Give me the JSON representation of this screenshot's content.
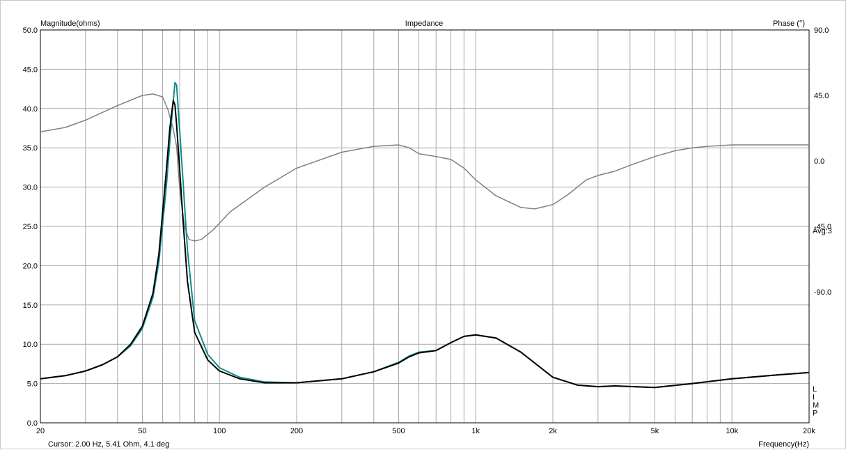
{
  "chart_data": {
    "type": "line",
    "title": "Impedance",
    "ylabel_left": "Magnitude(ohms)",
    "ylabel_right": "Phase (°)",
    "xlabel": "Frequency(Hz)",
    "x_scale": "log",
    "xlim": [
      20,
      20000
    ],
    "ylim_left": [
      0,
      50
    ],
    "ylim_right": [
      -180,
      90
    ],
    "x_ticks": [
      {
        "value": 20,
        "label": "20"
      },
      {
        "value": 50,
        "label": "50"
      },
      {
        "value": 100,
        "label": "100"
      },
      {
        "value": 200,
        "label": "200"
      },
      {
        "value": 500,
        "label": "500"
      },
      {
        "value": 1000,
        "label": "1k"
      },
      {
        "value": 2000,
        "label": "2k"
      },
      {
        "value": 5000,
        "label": "5k"
      },
      {
        "value": 10000,
        "label": "10k"
      },
      {
        "value": 20000,
        "label": "20k"
      }
    ],
    "y_ticks_left": [
      "0.0",
      "5.0",
      "10.0",
      "15.0",
      "20.0",
      "25.0",
      "30.0",
      "35.0",
      "40.0",
      "45.0",
      "50.0"
    ],
    "y_ticks_right": [
      {
        "value": 90,
        "label": "90.0"
      },
      {
        "value": 45,
        "label": "45.0"
      },
      {
        "value": 0,
        "label": "0.0"
      },
      {
        "value": -45,
        "label": "-45.0"
      },
      {
        "value": -90,
        "label": "-90.0"
      }
    ],
    "grid": true,
    "annotations": {
      "avg": "Avg:3",
      "limp": [
        "L",
        "I",
        "M",
        "P"
      ],
      "cursor": "Cursor: 2.00 Hz, 5.41 Ohm, 4.1 deg"
    },
    "series": [
      {
        "axis": "right",
        "color": "#808080",
        "x": [
          20,
          25,
          30,
          40,
          50,
          55,
          60,
          63,
          66,
          68,
          70,
          73,
          76,
          80,
          85,
          95,
          110,
          150,
          200,
          300,
          400,
          500,
          550,
          600,
          700,
          800,
          900,
          1000,
          1200,
          1500,
          1700,
          2000,
          2300,
          2700,
          3000,
          3500,
          4000,
          5000,
          6000,
          7000,
          8000,
          10000,
          15000,
          20000
        ],
        "y": [
          20,
          23,
          28,
          38,
          45,
          46,
          44,
          35,
          22,
          10,
          -20,
          -45,
          -54,
          -55,
          -54,
          -47,
          -35,
          -18,
          -5,
          6,
          10,
          11,
          9,
          5,
          3,
          1,
          -5,
          -13,
          -24,
          -32,
          -33,
          -30,
          -23,
          -13,
          -10,
          -7,
          -3,
          3,
          7,
          9,
          10,
          11,
          11,
          11
        ]
      },
      {
        "axis": "left",
        "color": "#0f8d8d",
        "x": [
          20,
          25,
          30,
          35,
          40,
          45,
          50,
          55,
          58,
          62,
          65,
          67,
          68,
          69,
          70,
          72,
          75,
          80,
          90,
          100,
          120,
          150,
          200,
          300,
          400,
          500,
          550,
          600,
          700,
          800,
          900,
          1000,
          1200,
          1500,
          2000,
          2500,
          3000,
          3500,
          5000,
          7000,
          10000,
          15000,
          20000
        ],
        "y": [
          5.6,
          6.0,
          6.6,
          7.4,
          8.4,
          9.8,
          12.0,
          16.0,
          20.5,
          30.0,
          38.5,
          43.3,
          43.0,
          40.0,
          37.0,
          31.0,
          22.0,
          13.0,
          8.7,
          7.0,
          5.8,
          5.2,
          5.1,
          5.6,
          6.5,
          7.7,
          8.5,
          9.0,
          9.2,
          10.2,
          11.0,
          11.2,
          10.8,
          9.0,
          5.8,
          4.8,
          4.6,
          4.7,
          4.5,
          5.0,
          5.6,
          6.1,
          6.4
        ]
      },
      {
        "axis": "left",
        "color": "#000000",
        "x": [
          20,
          25,
          30,
          35,
          40,
          45,
          50,
          55,
          58,
          62,
          64,
          66,
          67,
          68,
          70,
          72,
          75,
          80,
          90,
          100,
          120,
          150,
          200,
          300,
          400,
          500,
          550,
          600,
          700,
          800,
          900,
          1000,
          1200,
          1500,
          2000,
          2500,
          3000,
          3500,
          5000,
          7000,
          10000,
          15000,
          20000
        ],
        "y": [
          5.6,
          6.0,
          6.6,
          7.4,
          8.4,
          10.0,
          12.3,
          16.5,
          21.5,
          32.0,
          37.5,
          41.0,
          40.5,
          38.0,
          32.0,
          26.0,
          18.0,
          11.5,
          8.0,
          6.6,
          5.6,
          5.1,
          5.1,
          5.6,
          6.5,
          7.6,
          8.4,
          8.9,
          9.2,
          10.2,
          11.0,
          11.2,
          10.8,
          9.0,
          5.8,
          4.8,
          4.6,
          4.7,
          4.5,
          5.0,
          5.6,
          6.1,
          6.4
        ]
      }
    ]
  }
}
